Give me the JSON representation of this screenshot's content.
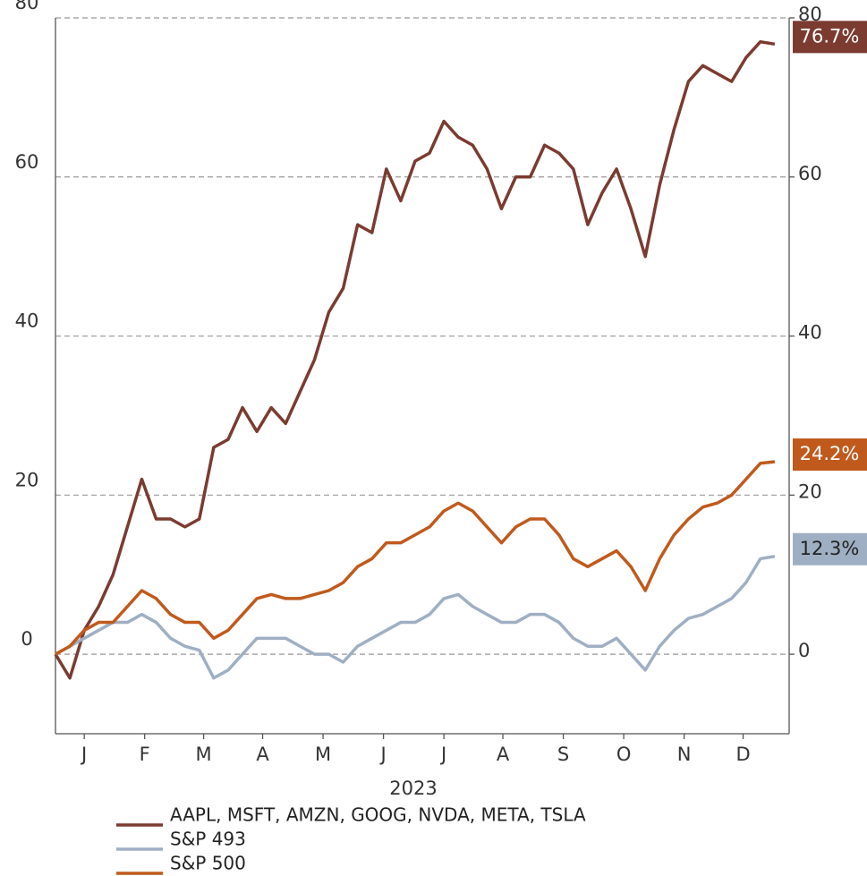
{
  "chart_data": {
    "type": "line",
    "x_label": "2023",
    "x": [
      0,
      1,
      2,
      3,
      4,
      5,
      6,
      7,
      8,
      9,
      10,
      11,
      12,
      13,
      14,
      15,
      16,
      17,
      18,
      19,
      20,
      21,
      22,
      23,
      24,
      25,
      26,
      27,
      28,
      29,
      30,
      31,
      32,
      33,
      34,
      35,
      36,
      37,
      38,
      39,
      40,
      41,
      42,
      43,
      44,
      45,
      46,
      47,
      48,
      49,
      50
    ],
    "xlim": [
      0,
      51
    ],
    "xticks": [
      {
        "value": 2,
        "label": "J"
      },
      {
        "value": 6.2,
        "label": "F"
      },
      {
        "value": 10.3,
        "label": "M"
      },
      {
        "value": 14.4,
        "label": "A"
      },
      {
        "value": 18.6,
        "label": "M"
      },
      {
        "value": 22.8,
        "label": "J"
      },
      {
        "value": 27,
        "label": "J"
      },
      {
        "value": 31.1,
        "label": "A"
      },
      {
        "value": 35.3,
        "label": "S"
      },
      {
        "value": 39.5,
        "label": "O"
      },
      {
        "value": 43.7,
        "label": "N"
      },
      {
        "value": 47.8,
        "label": "D"
      }
    ],
    "ylim": [
      -10,
      80
    ],
    "yticks": [
      0,
      20,
      40,
      60,
      80
    ],
    "y2lim": [
      -10,
      80
    ],
    "y2ticks": [
      0,
      20,
      40,
      60,
      80
    ],
    "grid": true,
    "series": [
      {
        "name": "AAPL, MSFT, AMZN, GOOG, NVDA, META, TSLA",
        "color": "#7b3b30",
        "end_label": "76.7%",
        "values": [
          0,
          -3,
          3,
          6,
          10,
          16,
          22,
          17,
          17,
          16,
          17,
          26,
          27,
          31,
          28,
          31,
          29,
          33,
          37,
          43,
          46,
          54,
          53,
          61,
          57,
          62,
          63,
          67,
          65,
          64,
          61,
          56,
          60,
          60,
          64,
          63,
          61,
          54,
          58,
          61,
          56,
          50,
          59,
          66,
          72,
          74,
          73,
          72,
          75,
          77,
          76.7
        ]
      },
      {
        "name": "S&P 493",
        "color": "#9fafc3",
        "end_label": "12.3%",
        "values": [
          0,
          1,
          2,
          3,
          4,
          4,
          5,
          4,
          2,
          1,
          0.5,
          -3,
          -2,
          0,
          2,
          2,
          2,
          1,
          0,
          0,
          -1,
          1,
          2,
          3,
          4,
          4,
          5,
          7,
          7.5,
          6,
          5,
          4,
          4,
          5,
          5,
          4,
          2,
          1,
          1,
          2,
          0,
          -2,
          1,
          3,
          4.5,
          5,
          6,
          7,
          9,
          12,
          12.3
        ]
      },
      {
        "name": "S&P 500",
        "color": "#c05a1c",
        "end_label": "24.2%",
        "values": [
          0,
          1,
          3,
          4,
          4,
          6,
          8,
          7,
          5,
          4,
          4,
          2,
          3,
          5,
          7,
          7.5,
          7,
          7,
          7.5,
          8,
          9,
          11,
          12,
          14,
          14,
          15,
          16,
          18,
          19,
          18,
          16,
          14,
          16,
          17,
          17,
          15,
          12,
          11,
          12,
          13,
          11,
          8,
          12,
          15,
          17,
          18.5,
          19,
          20,
          22,
          24,
          24.2
        ]
      }
    ]
  }
}
